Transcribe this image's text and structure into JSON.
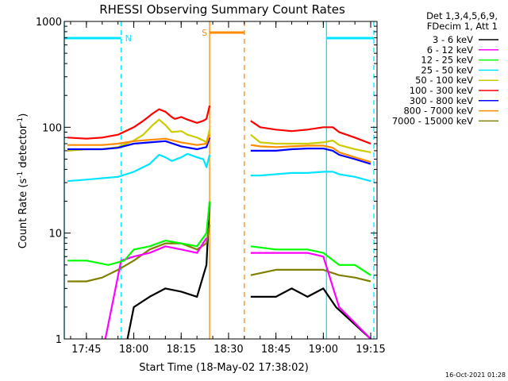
{
  "chart_data": {
    "type": "line",
    "title": "RHESSI Observing Summary Count Rates",
    "xlabel": "Start Time (18-May-02 17:38:02)",
    "ylabel": "Count Rate (s",
    "ylabel_sup": "-1",
    "ylabel_mid": " detector",
    "ylabel_end": ")",
    "y_scale": "log",
    "ylim": [
      1,
      1000
    ],
    "xlim": [
      "17:38",
      "19:17"
    ],
    "x_tick_labels": [
      "17:45",
      "18:00",
      "18:15",
      "18:30",
      "18:45",
      "19:00",
      "19:15"
    ],
    "y_tick_labels": [
      "1",
      "10",
      "100",
      "1000"
    ],
    "legend_header": [
      "Det 1,3,4,5,6,9,",
      "FDecim 1, Att 1"
    ],
    "legend_placement": "right",
    "footer": "16-Oct-2021 01:28",
    "annotations": [
      {
        "label": "N",
        "color": "#00e5ff",
        "kind": "night",
        "intervals": [
          [
            "17:38",
            "17:56"
          ],
          [
            "19:01",
            "19:16"
          ]
        ]
      },
      {
        "label": "S",
        "color": "#ff8c00",
        "kind": "saa",
        "interval": [
          "18:24",
          "18:35"
        ]
      }
    ],
    "series": [
      {
        "name": "3 - 6 keV",
        "color": "#000000",
        "points": [
          [
            "17:58",
            1.0
          ],
          [
            "18:00",
            2.0
          ],
          [
            "18:05",
            2.5
          ],
          [
            "18:10",
            3.0
          ],
          [
            "18:15",
            2.8
          ],
          [
            "18:20",
            2.5
          ],
          [
            "18:23",
            5
          ],
          [
            "18:24",
            20
          ],
          [
            "18:37",
            2.5
          ],
          [
            "18:45",
            2.5
          ],
          [
            "18:50",
            3.0
          ],
          [
            "18:55",
            2.5
          ],
          [
            "19:00",
            3.0
          ],
          [
            "19:04",
            2.0
          ],
          [
            "19:15",
            1.0
          ]
        ]
      },
      {
        "name": "6 - 12 keV",
        "color": "#ff00ff",
        "points": [
          [
            "17:51",
            1.0
          ],
          [
            "17:56",
            5.5
          ],
          [
            "18:00",
            6.0
          ],
          [
            "18:05",
            6.5
          ],
          [
            "18:10",
            7.5
          ],
          [
            "18:15",
            7.0
          ],
          [
            "18:20",
            6.5
          ],
          [
            "18:23",
            9
          ],
          [
            "18:37",
            6.5
          ],
          [
            "18:45",
            6.5
          ],
          [
            "18:50",
            6.5
          ],
          [
            "18:55",
            6.5
          ],
          [
            "19:00",
            6.0
          ],
          [
            "19:05",
            2.0
          ],
          [
            "19:15",
            1.0
          ]
        ]
      },
      {
        "name": "12 - 25 keV",
        "color": "#00ff00",
        "points": [
          [
            "17:39",
            5.5
          ],
          [
            "17:45",
            5.5
          ],
          [
            "17:52",
            5.0
          ],
          [
            "17:57",
            5.5
          ],
          [
            "18:00",
            7.0
          ],
          [
            "18:05",
            7.5
          ],
          [
            "18:10",
            8.5
          ],
          [
            "18:15",
            8.0
          ],
          [
            "18:20",
            7.5
          ],
          [
            "18:23",
            10
          ],
          [
            "18:24",
            20
          ],
          [
            "18:37",
            7.5
          ],
          [
            "18:45",
            7.0
          ],
          [
            "18:50",
            7.0
          ],
          [
            "18:55",
            7.0
          ],
          [
            "19:00",
            6.5
          ],
          [
            "19:05",
            5.0
          ],
          [
            "19:10",
            5.0
          ],
          [
            "19:15",
            4.0
          ]
        ]
      },
      {
        "name": "25 - 50 keV",
        "color": "#00e5ff",
        "points": [
          [
            "17:39",
            31
          ],
          [
            "17:45",
            32
          ],
          [
            "17:50",
            33
          ],
          [
            "17:55",
            34
          ],
          [
            "18:00",
            38
          ],
          [
            "18:05",
            45
          ],
          [
            "18:08",
            55
          ],
          [
            "18:10",
            52
          ],
          [
            "18:12",
            48
          ],
          [
            "18:15",
            52
          ],
          [
            "18:17",
            56
          ],
          [
            "18:20",
            52
          ],
          [
            "18:22",
            50
          ],
          [
            "18:23",
            42
          ],
          [
            "18:24",
            55
          ],
          [
            "18:37",
            35
          ],
          [
            "18:40",
            35
          ],
          [
            "18:45",
            36
          ],
          [
            "18:50",
            37
          ],
          [
            "18:55",
            37
          ],
          [
            "19:00",
            38
          ],
          [
            "19:03",
            38
          ],
          [
            "19:05",
            36
          ],
          [
            "19:10",
            34
          ],
          [
            "19:15",
            31
          ]
        ]
      },
      {
        "name": "50 - 100 keV",
        "color": "#cccc00",
        "points": [
          [
            "17:39",
            60
          ],
          [
            "17:45",
            62
          ],
          [
            "17:50",
            62
          ],
          [
            "17:55",
            65
          ],
          [
            "18:00",
            75
          ],
          [
            "18:03",
            85
          ],
          [
            "18:06",
            105
          ],
          [
            "18:08",
            118
          ],
          [
            "18:10",
            105
          ],
          [
            "18:12",
            90
          ],
          [
            "18:15",
            92
          ],
          [
            "18:17",
            85
          ],
          [
            "18:20",
            80
          ],
          [
            "18:22",
            75
          ],
          [
            "18:23",
            72
          ],
          [
            "18:24",
            95
          ],
          [
            "18:37",
            85
          ],
          [
            "18:40",
            72
          ],
          [
            "18:45",
            70
          ],
          [
            "18:50",
            70
          ],
          [
            "18:55",
            70
          ],
          [
            "19:00",
            72
          ],
          [
            "19:03",
            75
          ],
          [
            "19:05",
            68
          ],
          [
            "19:10",
            62
          ],
          [
            "19:15",
            58
          ]
        ]
      },
      {
        "name": "100 - 300 keV",
        "color": "#ff0000",
        "points": [
          [
            "17:39",
            80
          ],
          [
            "17:45",
            78
          ],
          [
            "17:50",
            80
          ],
          [
            "17:55",
            85
          ],
          [
            "18:00",
            100
          ],
          [
            "18:03",
            115
          ],
          [
            "18:06",
            135
          ],
          [
            "18:08",
            148
          ],
          [
            "18:10",
            140
          ],
          [
            "18:12",
            125
          ],
          [
            "18:13",
            120
          ],
          [
            "18:15",
            125
          ],
          [
            "18:17",
            118
          ],
          [
            "18:20",
            110
          ],
          [
            "18:22",
            115
          ],
          [
            "18:23",
            120
          ],
          [
            "18:24",
            160
          ],
          [
            "18:37",
            115
          ],
          [
            "18:40",
            100
          ],
          [
            "18:45",
            95
          ],
          [
            "18:50",
            92
          ],
          [
            "18:55",
            95
          ],
          [
            "19:00",
            100
          ],
          [
            "19:03",
            100
          ],
          [
            "19:05",
            90
          ],
          [
            "19:10",
            80
          ],
          [
            "19:15",
            70
          ]
        ]
      },
      {
        "name": "300 - 800 keV",
        "color": "#0000ff",
        "points": [
          [
            "17:39",
            62
          ],
          [
            "17:45",
            62
          ],
          [
            "17:50",
            62
          ],
          [
            "17:55",
            64
          ],
          [
            "18:00",
            70
          ],
          [
            "18:05",
            72
          ],
          [
            "18:10",
            74
          ],
          [
            "18:15",
            66
          ],
          [
            "18:20",
            62
          ],
          [
            "18:23",
            65
          ],
          [
            "18:24",
            80
          ],
          [
            "18:37",
            60
          ],
          [
            "18:40",
            60
          ],
          [
            "18:45",
            60
          ],
          [
            "18:50",
            62
          ],
          [
            "18:55",
            63
          ],
          [
            "19:00",
            63
          ],
          [
            "19:03",
            60
          ],
          [
            "19:05",
            55
          ],
          [
            "19:10",
            50
          ],
          [
            "19:15",
            45
          ]
        ]
      },
      {
        "name": "800 - 7000 keV",
        "color": "#ff8c00",
        "points": [
          [
            "17:39",
            68
          ],
          [
            "17:45",
            68
          ],
          [
            "17:50",
            68
          ],
          [
            "17:55",
            70
          ],
          [
            "18:00",
            74
          ],
          [
            "18:05",
            76
          ],
          [
            "18:10",
            78
          ],
          [
            "18:15",
            72
          ],
          [
            "18:20",
            68
          ],
          [
            "18:23",
            70
          ],
          [
            "18:24",
            85
          ],
          [
            "18:37",
            68
          ],
          [
            "18:40",
            66
          ],
          [
            "18:45",
            65
          ],
          [
            "18:50",
            66
          ],
          [
            "18:55",
            67
          ],
          [
            "19:00",
            67
          ],
          [
            "19:03",
            64
          ],
          [
            "19:05",
            58
          ],
          [
            "19:10",
            52
          ],
          [
            "19:15",
            47
          ]
        ]
      },
      {
        "name": "7000 - 15000 keV",
        "color": "#808000",
        "points": [
          [
            "17:39",
            3.5
          ],
          [
            "17:45",
            3.5
          ],
          [
            "17:50",
            3.8
          ],
          [
            "17:55",
            4.5
          ],
          [
            "18:00",
            5.5
          ],
          [
            "18:05",
            7.0
          ],
          [
            "18:10",
            8.0
          ],
          [
            "18:15",
            8.0
          ],
          [
            "18:20",
            7.0
          ],
          [
            "18:23",
            8.0
          ],
          [
            "18:24",
            12
          ],
          [
            "18:37",
            4.0
          ],
          [
            "18:45",
            4.5
          ],
          [
            "18:50",
            4.5
          ],
          [
            "18:55",
            4.5
          ],
          [
            "19:00",
            4.5
          ],
          [
            "19:05",
            4.0
          ],
          [
            "19:10",
            3.8
          ],
          [
            "19:15",
            3.5
          ]
        ]
      }
    ]
  }
}
